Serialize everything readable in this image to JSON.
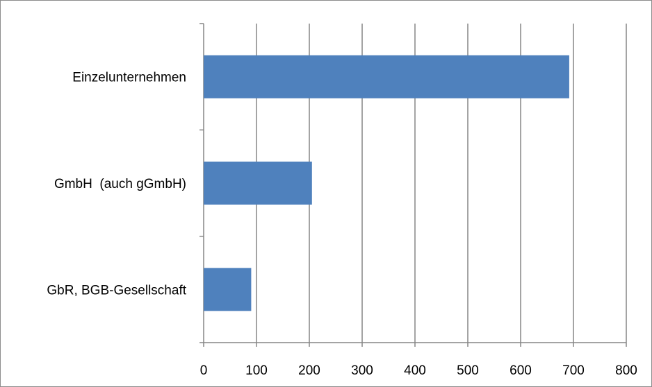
{
  "chart_data": {
    "type": "bar",
    "orientation": "horizontal",
    "categories": [
      "Einzelunternehmen",
      "GmbH  (auch gGmbH)",
      "GbR, BGB-Gesellschaft"
    ],
    "values": [
      692,
      205,
      90
    ],
    "xlim": [
      0,
      800
    ],
    "xticks": [
      "0",
      "100",
      "200",
      "300",
      "400",
      "500",
      "600",
      "700",
      "800"
    ],
    "grid": true,
    "bar_color": "#4f81bd",
    "grid_color": "#868686",
    "title": "",
    "xlabel": "",
    "ylabel": ""
  }
}
